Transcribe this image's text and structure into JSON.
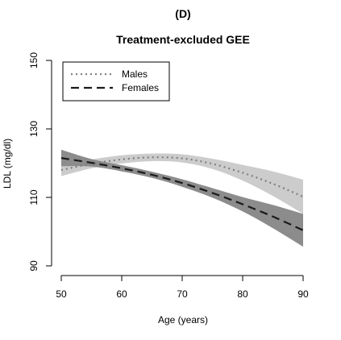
{
  "panel_label": "(D)",
  "chart_data": {
    "type": "line",
    "title": "Treatment-excluded GEE",
    "xlabel": "Age (years)",
    "ylabel": "LDL (mg/dl)",
    "xlim": [
      50,
      90
    ],
    "ylim": [
      90,
      150
    ],
    "xticks": [
      50,
      60,
      70,
      80,
      90
    ],
    "yticks": [
      90,
      110,
      130,
      150
    ],
    "grid": false,
    "legend_position": "top-left",
    "series": [
      {
        "name": "Males",
        "line_style": "dotted",
        "line_color": "#7f7f7f",
        "band_color": "#cccccc",
        "x": [
          50,
          55,
          60,
          65,
          70,
          75,
          80,
          85,
          90
        ],
        "y": [
          118,
          119.8,
          121.1,
          121.7,
          121.4,
          119.8,
          117.2,
          114.0,
          110.2
        ],
        "lower": [
          116.2,
          118.5,
          119.9,
          120.6,
          120.2,
          118.3,
          114.9,
          110.4,
          105.2
        ],
        "upper": [
          119.8,
          121.1,
          122.3,
          122.8,
          122.6,
          121.3,
          119.5,
          117.6,
          115.2
        ]
      },
      {
        "name": "Females",
        "line_style": "dashed",
        "line_color": "#1a1a1a",
        "band_color": "#8c8c8c",
        "x": [
          50,
          55,
          60,
          65,
          70,
          75,
          80,
          85,
          90
        ],
        "y": [
          121.5,
          120.1,
          118.5,
          116.6,
          114.2,
          111.3,
          108.0,
          104.4,
          100.4
        ],
        "lower": [
          119.1,
          119.0,
          117.6,
          115.7,
          113.1,
          109.9,
          105.9,
          101.0,
          95.6
        ],
        "upper": [
          123.9,
          121.2,
          119.4,
          117.5,
          115.3,
          112.7,
          110.1,
          107.8,
          105.2
        ]
      }
    ]
  }
}
